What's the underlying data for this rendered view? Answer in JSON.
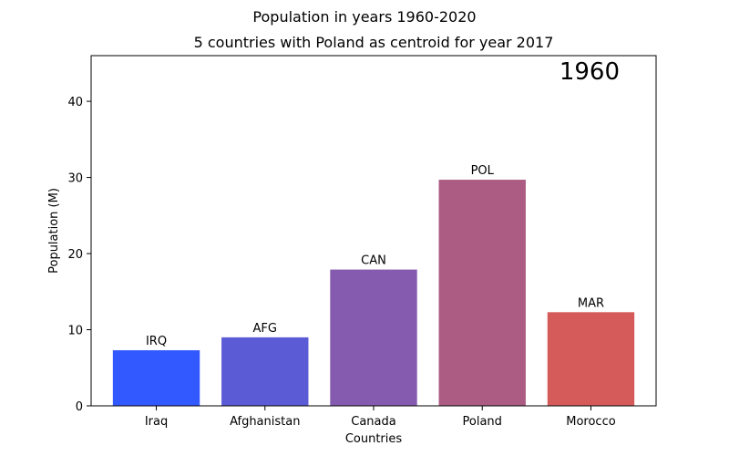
{
  "chart_data": {
    "type": "bar",
    "title": "Population in years 1960-2020",
    "subtitle": "5 countries with Poland as centroid for year 2017",
    "year_label": "1960",
    "xlabel": "Countries",
    "ylabel": "Population (M)",
    "categories": [
      "Iraq",
      "Afghanistan",
      "Canada",
      "Poland",
      "Morocco"
    ],
    "bar_labels": [
      "IRQ",
      "AFG",
      "CAN",
      "POL",
      "MAR"
    ],
    "values": [
      7.3,
      9.0,
      17.9,
      29.7,
      12.3
    ],
    "colors": [
      "#3259ff",
      "#5b5bd6",
      "#855bb0",
      "#ac5b83",
      "#d55b5b"
    ],
    "ylim": [
      0,
      46
    ],
    "yticks": [
      0,
      10,
      20,
      30,
      40
    ],
    "grid": false
  }
}
